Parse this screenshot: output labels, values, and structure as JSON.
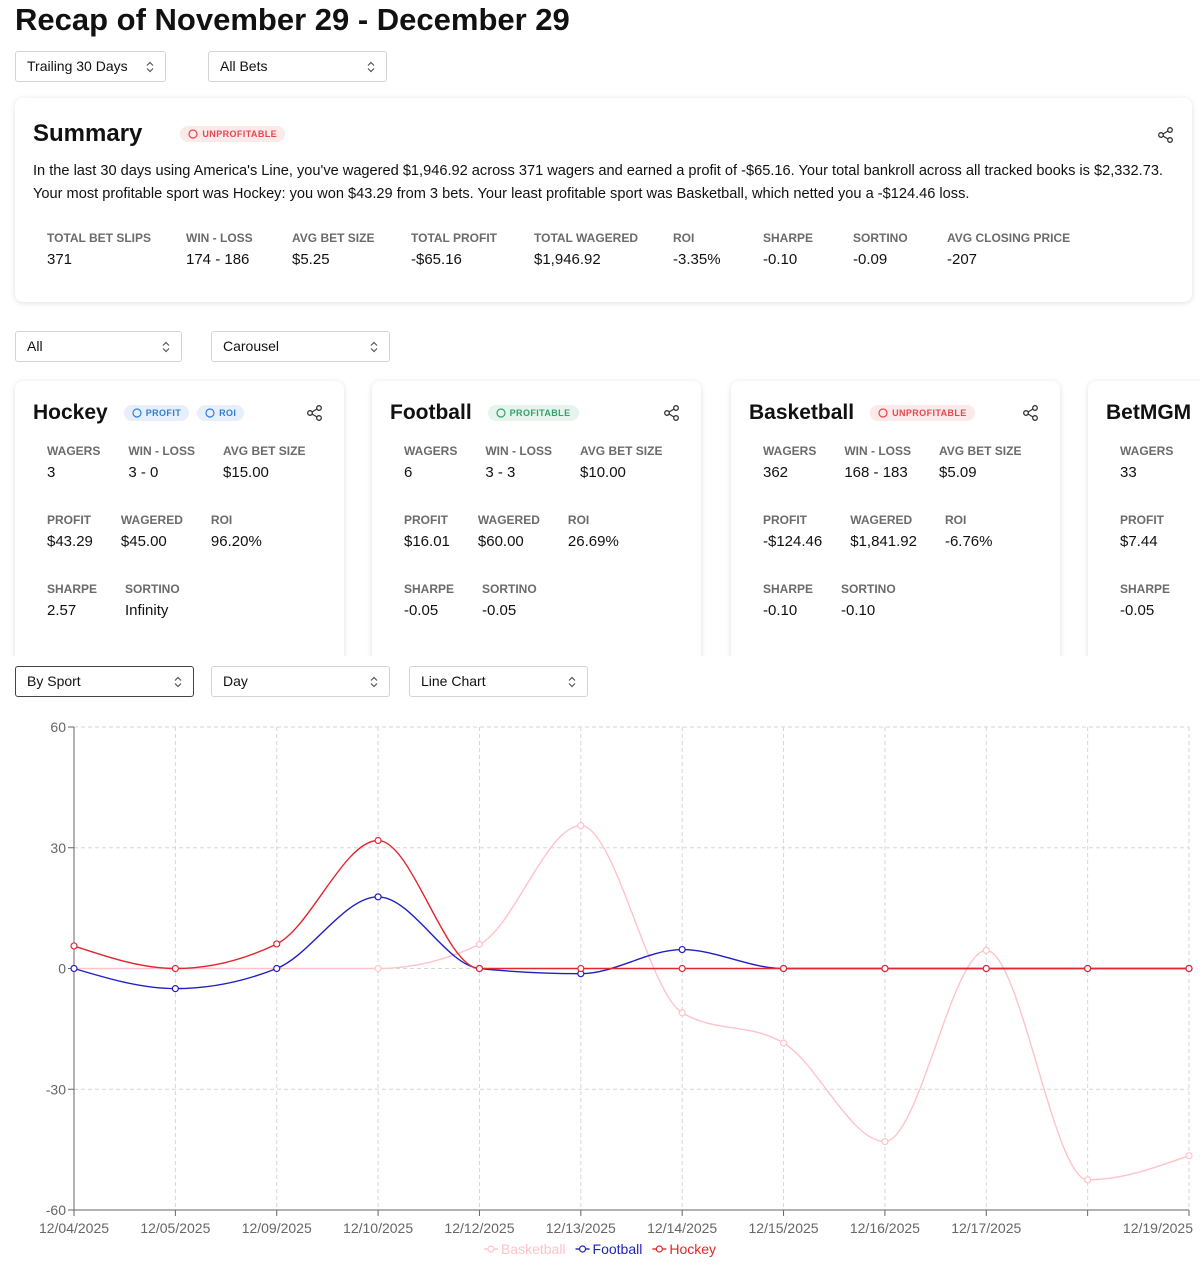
{
  "header": {
    "title": "Recap of November 29 - December 29"
  },
  "filters": [
    "Trailing 30 Days",
    "All Bets"
  ],
  "summary": {
    "title": "Summary",
    "badge": {
      "text": "UNPROFITABLE",
      "color": "#e5484d"
    },
    "text": [
      "In the last 30 days using America's Line, you've wagered $1,946.92 across 371 wagers and earned a profit of -$65.16. Your total bankroll across all tracked books is $2,332.73.",
      "Your most profitable sport was Hockey: you won $43.29 from 3 bets. Your least profitable sport was Basketball, which netted you a -$124.46 loss."
    ],
    "stats": [
      {
        "label": "TOTAL BET SLIPS",
        "value": "371"
      },
      {
        "label": "WIN - LOSS",
        "value": "174 - 186"
      },
      {
        "label": "AVG BET SIZE",
        "value": "$5.25"
      },
      {
        "label": "TOTAL PROFIT",
        "value": "-$65.16"
      },
      {
        "label": "TOTAL WAGERED",
        "value": "$1,946.92"
      },
      {
        "label": "ROI",
        "value": "-3.35%"
      },
      {
        "label": "SHARPE",
        "value": "-0.10"
      },
      {
        "label": "SORTINO",
        "value": "-0.09"
      },
      {
        "label": "AVG CLOSING PRICE",
        "value": "-207"
      }
    ]
  },
  "view_filters": [
    "All",
    "Carousel"
  ],
  "cards": [
    {
      "title": "Hockey",
      "badges": [
        {
          "text": "PROFIT",
          "color": "#2f7fd8"
        },
        {
          "text": "ROI",
          "color": "#2f7fd8"
        }
      ],
      "rows": [
        [
          {
            "label": "WAGERS",
            "value": "3"
          },
          {
            "label": "WIN - LOSS",
            "value": "3 - 0"
          },
          {
            "label": "AVG BET SIZE",
            "value": "$15.00"
          }
        ],
        [
          {
            "label": "PROFIT",
            "value": "$43.29"
          },
          {
            "label": "WAGERED",
            "value": "$45.00"
          },
          {
            "label": "ROI",
            "value": "96.20%"
          }
        ],
        [
          {
            "label": "SHARPE",
            "value": "2.57"
          },
          {
            "label": "SORTINO",
            "value": "Infinity"
          }
        ]
      ]
    },
    {
      "title": "Football",
      "badges": [
        {
          "text": "PROFITABLE",
          "color": "#30a46c"
        }
      ],
      "rows": [
        [
          {
            "label": "WAGERS",
            "value": "6"
          },
          {
            "label": "WIN - LOSS",
            "value": "3 - 3"
          },
          {
            "label": "AVG BET SIZE",
            "value": "$10.00"
          }
        ],
        [
          {
            "label": "PROFIT",
            "value": "$16.01"
          },
          {
            "label": "WAGERED",
            "value": "$60.00"
          },
          {
            "label": "ROI",
            "value": "26.69%"
          }
        ],
        [
          {
            "label": "SHARPE",
            "value": "-0.05"
          },
          {
            "label": "SORTINO",
            "value": "-0.05"
          }
        ]
      ]
    },
    {
      "title": "Basketball",
      "badges": [
        {
          "text": "UNPROFITABLE",
          "color": "#e5484d"
        }
      ],
      "rows": [
        [
          {
            "label": "WAGERS",
            "value": "362"
          },
          {
            "label": "WIN - LOSS",
            "value": "168 - 183"
          },
          {
            "label": "AVG BET SIZE",
            "value": "$5.09"
          }
        ],
        [
          {
            "label": "PROFIT",
            "value": "-$124.46"
          },
          {
            "label": "WAGERED",
            "value": "$1,841.92"
          },
          {
            "label": "ROI",
            "value": "-6.76%"
          }
        ],
        [
          {
            "label": "SHARPE",
            "value": "-0.10"
          },
          {
            "label": "SORTINO",
            "value": "-0.10"
          }
        ]
      ]
    },
    {
      "title": "BetMGM",
      "badges": [],
      "rows": [
        [
          {
            "label": "WAGERS",
            "value": "33"
          }
        ],
        [
          {
            "label": "PROFIT",
            "value": "$7.44"
          }
        ],
        [
          {
            "label": "SHARPE",
            "value": "-0.05"
          }
        ]
      ]
    }
  ],
  "chart_filters": [
    "By Sport",
    "Day",
    "Line Chart"
  ],
  "chart_data": {
    "type": "line",
    "categories": [
      "12/04/2025",
      "12/05/2025",
      "12/09/2025",
      "12/10/2025",
      "12/12/2025",
      "12/13/2025",
      "12/14/2025",
      "12/15/2025",
      "12/16/2025",
      "12/17/2025",
      null,
      "12/19/2025"
    ],
    "series": [
      {
        "name": "Basketball",
        "color": "#ffc2cb",
        "values": [
          0,
          0,
          0,
          0,
          6,
          35.5,
          -11,
          -18.5,
          -43,
          4.5,
          -52.5,
          -46.5
        ]
      },
      {
        "name": "Football",
        "color": "#1f1fc4",
        "values": [
          0,
          -5,
          0,
          17.8,
          0,
          -1.3,
          4.7,
          0,
          0,
          0,
          0,
          0
        ]
      },
      {
        "name": "Hockey",
        "color": "#e3262e",
        "values": [
          5.6,
          0,
          6.1,
          31.8,
          0,
          0,
          0,
          0,
          0,
          0,
          0,
          0
        ]
      }
    ],
    "ylim": [
      -60,
      60
    ],
    "yticks": [
      -60,
      -30,
      0,
      30,
      60
    ],
    "grid": true,
    "legend": "bottom"
  }
}
